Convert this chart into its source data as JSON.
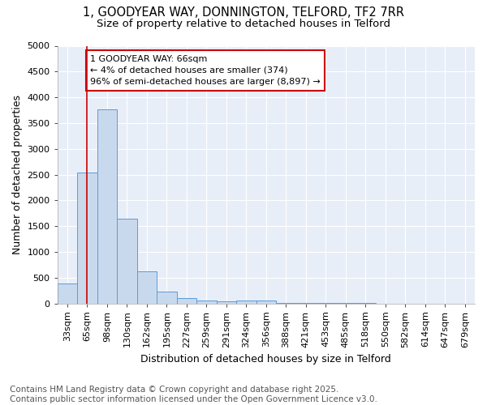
{
  "title_line1": "1, GOODYEAR WAY, DONNINGTON, TELFORD, TF2 7RR",
  "title_line2": "Size of property relative to detached houses in Telford",
  "xlabel": "Distribution of detached houses by size in Telford",
  "ylabel": "Number of detached properties",
  "bar_color": "#c9d9ed",
  "bar_edge_color": "#5b9bd5",
  "categories": [
    "33sqm",
    "65sqm",
    "98sqm",
    "130sqm",
    "162sqm",
    "195sqm",
    "227sqm",
    "259sqm",
    "291sqm",
    "324sqm",
    "356sqm",
    "388sqm",
    "421sqm",
    "453sqm",
    "485sqm",
    "518sqm",
    "550sqm",
    "582sqm",
    "614sqm",
    "647sqm",
    "679sqm"
  ],
  "values": [
    380,
    2540,
    3760,
    1650,
    620,
    235,
    105,
    58,
    40,
    55,
    50,
    3,
    2,
    2,
    1,
    1,
    0,
    0,
    0,
    0,
    0
  ],
  "ylim": [
    0,
    5000
  ],
  "yticks": [
    0,
    500,
    1000,
    1500,
    2000,
    2500,
    3000,
    3500,
    4000,
    4500,
    5000
  ],
  "vline_x": 1.0,
  "vline_color": "#cc0000",
  "annotation_text": "1 GOODYEAR WAY: 66sqm\n← 4% of detached houses are smaller (374)\n96% of semi-detached houses are larger (8,897) →",
  "annotation_box_color": "white",
  "annotation_box_edgecolor": "#cc0000",
  "footnote": "Contains HM Land Registry data © Crown copyright and database right 2025.\nContains public sector information licensed under the Open Government Licence v3.0.",
  "fig_background_color": "#ffffff",
  "plot_background_color": "#e8eef8",
  "grid_color": "white",
  "title_fontsize": 10.5,
  "subtitle_fontsize": 9.5,
  "axis_label_fontsize": 9,
  "tick_fontsize": 8,
  "annotation_fontsize": 8,
  "footnote_fontsize": 7.5
}
